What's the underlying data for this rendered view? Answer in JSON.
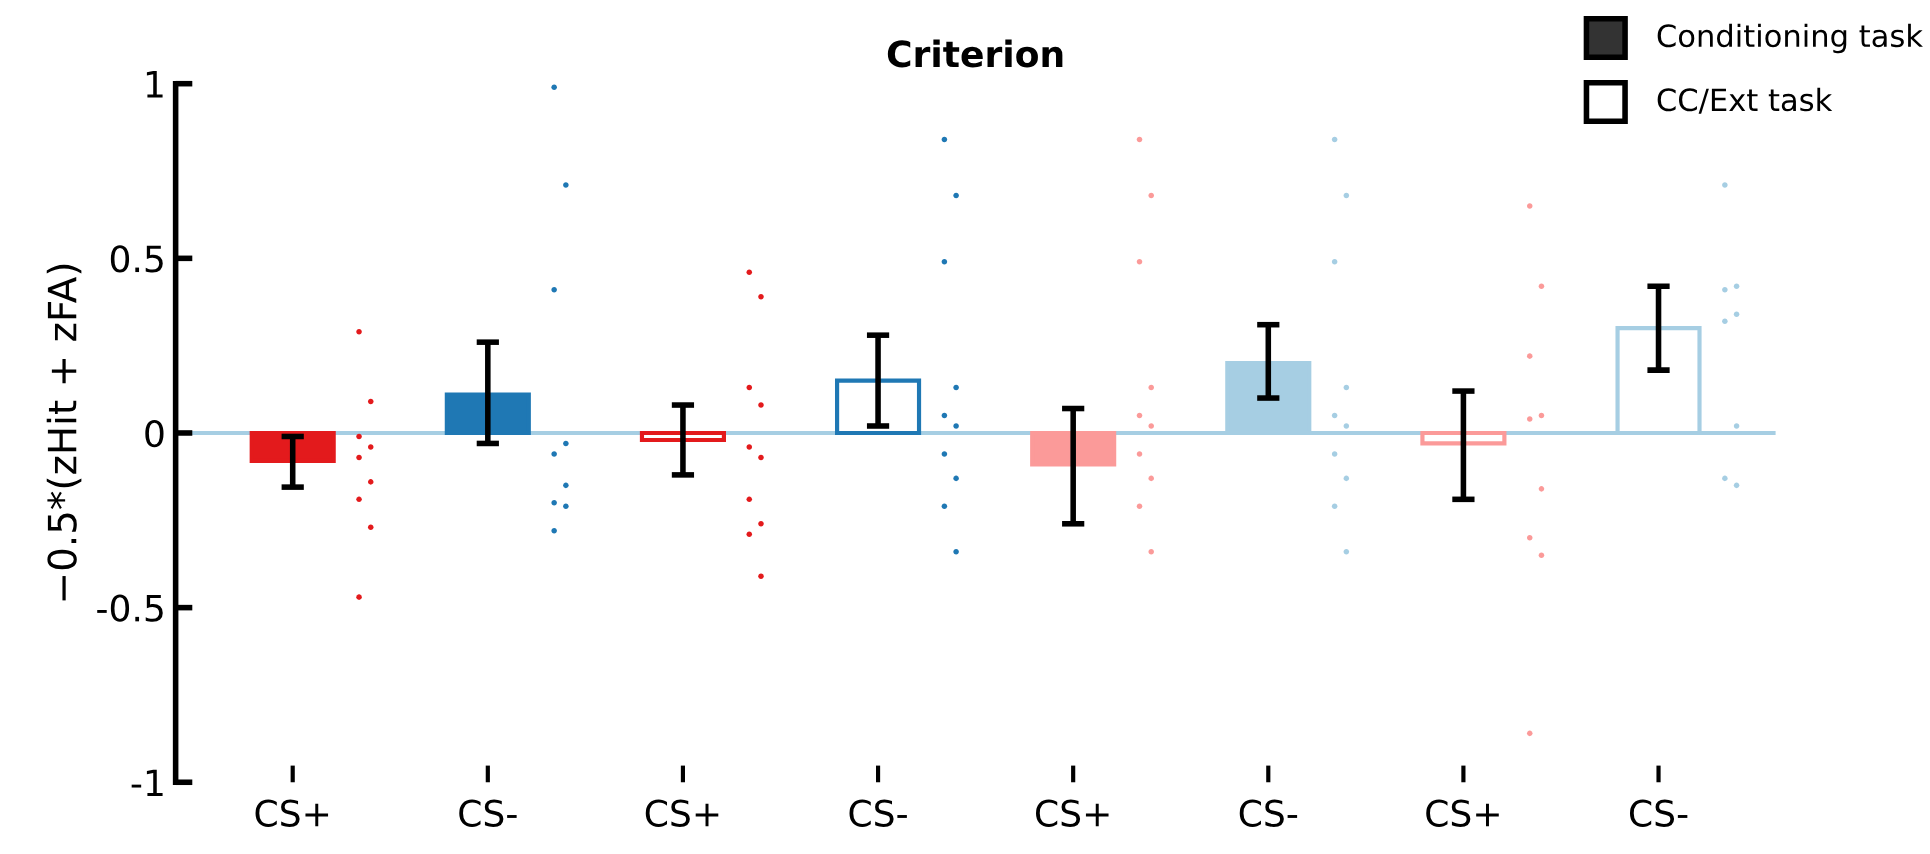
{
  "chart_data": {
    "type": "bar",
    "title": "Criterion",
    "ylabel": "−0.5*(zHit + zFA)",
    "categories": [
      "CS+",
      "CS-",
      "CS+",
      "CS-",
      "CS+",
      "CS-",
      "CS+",
      "CS-"
    ],
    "ylim": [
      -1,
      1
    ],
    "yticks": [
      -1,
      -0.5,
      0,
      0.5,
      1
    ],
    "annotations": [
      "Conditioning task",
      "CC/Ext task"
    ],
    "grid": false,
    "ref_lines": [
      {
        "axis": "y",
        "value": 0,
        "color": "#a6cee3"
      }
    ],
    "series": [
      {
        "color": "#333333",
        "values": [
          -0.08,
          0.11,
          null,
          null,
          -0.09,
          0.2,
          null,
          null
        ],
        "colors": [
          "#e31a1c",
          "#1f78b4",
          null,
          null,
          "#fb9a99",
          "#a6cee3",
          null,
          null
        ],
        "errors": [
          [
            -0.155,
            -0.01
          ],
          [
            -0.03,
            0.26
          ],
          null,
          null,
          [
            -0.26,
            0.07
          ],
          [
            0.1,
            0.31
          ],
          null,
          null
        ]
      },
      {
        "color": "#ffffff",
        "values": [
          null,
          null,
          -0.02,
          0.15,
          null,
          null,
          -0.03,
          0.3
        ],
        "colors": [
          null,
          null,
          "#e31a1c",
          "#1f78b4",
          null,
          null,
          "#fb9a99",
          "#a6cee3"
        ],
        "errors": [
          null,
          null,
          [
            -0.12,
            0.08
          ],
          [
            0.02,
            0.28
          ],
          null,
          null,
          [
            -0.19,
            0.12
          ],
          [
            0.18,
            0.42
          ]
        ]
      },
      {
        "type": "scatter",
        "colors": [
          "#e31a1c",
          "#1f78b4",
          "#e31a1c",
          "#1f78b4",
          "#fb9a99",
          "#a6cee3",
          "#fb9a99",
          "#a6cee3"
        ],
        "values": [
          0.29,
          0.99,
          0.46,
          0.84,
          0.84,
          0.84,
          0.65,
          0.71
        ]
      },
      {
        "type": "scatter",
        "colors": [
          "#e31a1c",
          "#1f78b4",
          "#e31a1c",
          "#1f78b4",
          "#fb9a99",
          "#a6cee3",
          "#fb9a99",
          "#a6cee3"
        ],
        "values": [
          0.09,
          0.71,
          0.39,
          0.68,
          0.68,
          0.68,
          0.42,
          0.42
        ]
      },
      {
        "type": "scatter",
        "colors": [
          "#e31a1c",
          "#1f78b4",
          "#e31a1c",
          "#1f78b4",
          "#fb9a99",
          "#a6cee3",
          "#fb9a99",
          "#a6cee3"
        ],
        "values": [
          -0.01,
          0.41,
          0.13,
          0.49,
          0.49,
          0.49,
          0.22,
          0.41
        ]
      },
      {
        "type": "scatter",
        "colors": [
          "#e31a1c",
          "#1f78b4",
          "#e31a1c",
          "#1f78b4",
          "#fb9a99",
          "#a6cee3",
          "#fb9a99",
          "#a6cee3"
        ],
        "values": [
          -0.04,
          -0.03,
          0.08,
          0.13,
          0.13,
          0.13,
          0.05,
          0.34
        ]
      },
      {
        "type": "scatter",
        "colors": [
          "#e31a1c",
          "#1f78b4",
          "#e31a1c",
          "#1f78b4",
          "#fb9a99",
          "#a6cee3",
          "#fb9a99",
          "#a6cee3"
        ],
        "values": [
          -0.07,
          -0.06,
          -0.04,
          0.05,
          0.05,
          0.05,
          0.04,
          0.32
        ]
      },
      {
        "type": "scatter",
        "colors": [
          "#e31a1c",
          "#1f78b4",
          "#e31a1c",
          "#1f78b4",
          "#fb9a99",
          "#a6cee3",
          "#fb9a99",
          "#a6cee3"
        ],
        "values": [
          -0.14,
          -0.15,
          -0.07,
          0.02,
          0.02,
          0.02,
          -0.16,
          0.02
        ]
      },
      {
        "type": "scatter",
        "colors": [
          "#e31a1c",
          "#1f78b4",
          "#e31a1c",
          "#1f78b4",
          "#fb9a99",
          "#a6cee3",
          "#fb9a99",
          "#a6cee3"
        ],
        "values": [
          -0.19,
          -0.2,
          -0.19,
          -0.06,
          -0.06,
          -0.06,
          -0.3,
          -0.13
        ]
      },
      {
        "type": "scatter",
        "colors": [
          "#e31a1c",
          "#1f78b4",
          "#e31a1c",
          "#1f78b4",
          "#fb9a99",
          "#a6cee3",
          "#fb9a99",
          "#a6cee3"
        ],
        "values": [
          -0.27,
          -0.21,
          -0.26,
          -0.13,
          -0.13,
          -0.13,
          -0.35,
          -0.15
        ]
      },
      {
        "type": "scatter",
        "colors": [
          "#e31a1c",
          "#1f78b4",
          "#e31a1c",
          "#1f78b4",
          "#fb9a99",
          "#a6cee3",
          "#fb9a99",
          "#a6cee3"
        ],
        "values": [
          -0.47,
          -0.28,
          -0.29,
          -0.21,
          -0.21,
          -0.21,
          -0.86,
          null
        ]
      },
      {
        "type": "scatter",
        "colors": [
          null,
          null,
          "#e31a1c",
          "#1f78b4",
          "#fb9a99",
          "#a6cee3",
          null,
          null
        ],
        "values": [
          null,
          null,
          -0.41,
          -0.34,
          -0.34,
          -0.34,
          null,
          null
        ]
      }
    ]
  }
}
